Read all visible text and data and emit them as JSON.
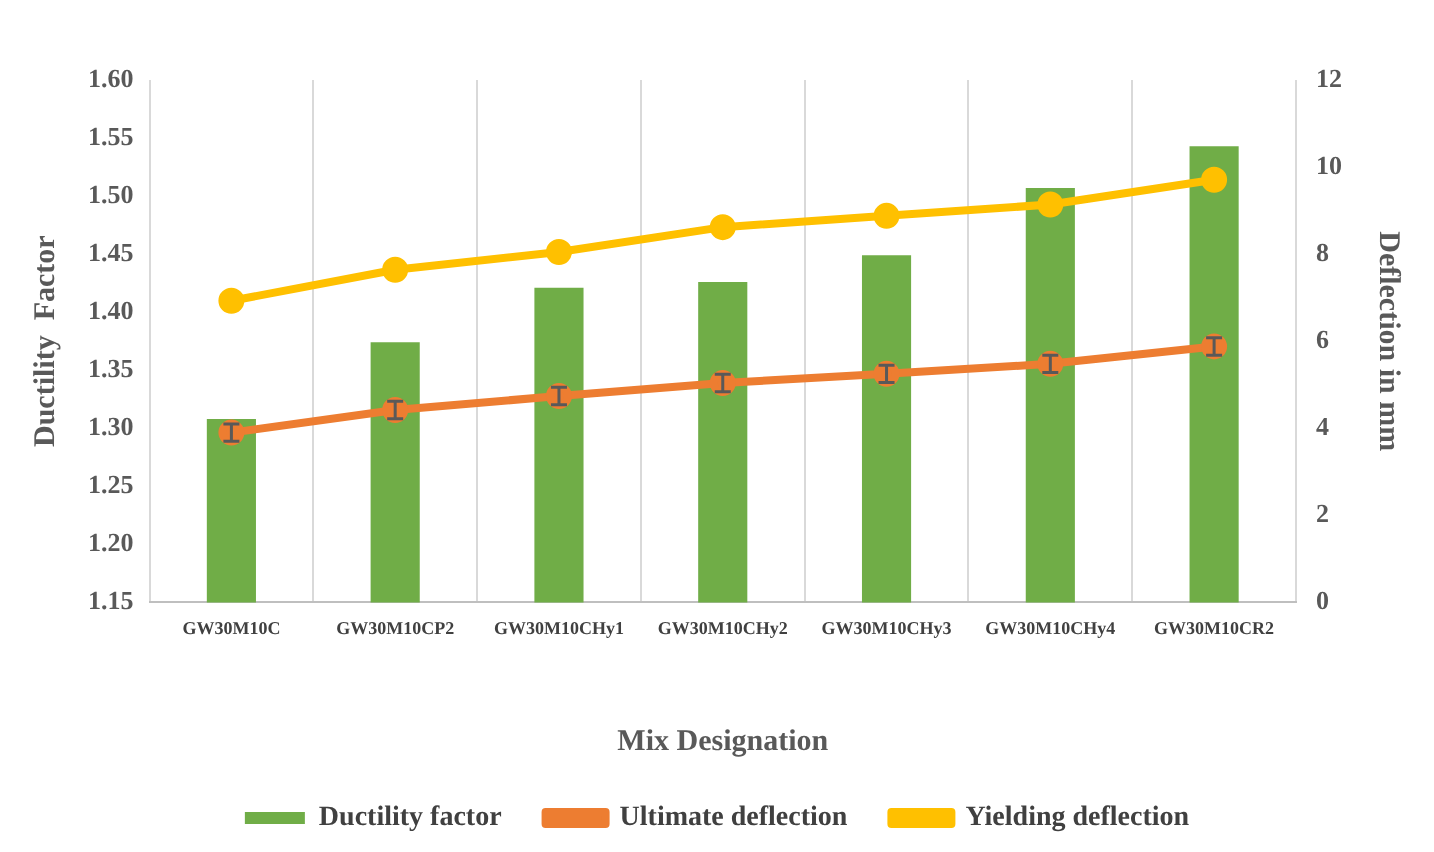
{
  "chart_data": {
    "type": "bar",
    "xlabel": "Mix Designation",
    "ylabel": "Ductility  Factor",
    "y2label": "Deflection in mm",
    "categories": [
      "GW30M10C",
      "GW30M10CP2",
      "GW30M10CHy1",
      "GW30M10CHy2",
      "GW30M10CHy3",
      "GW30M10CHy4",
      "GW30M10CR2"
    ],
    "series": [
      {
        "name": "Ductility factor",
        "color": "#70ad47",
        "values": [
          1.308,
          1.374,
          1.421,
          1.426,
          1.449,
          1.507,
          1.543
        ]
      },
      {
        "name": "Ultimate deflection",
        "type": "line",
        "axis": "y2",
        "color": "#ed7d31",
        "values": [
          3.9,
          4.42,
          4.74,
          5.04,
          5.25,
          5.48,
          5.88
        ],
        "errors": [
          0.2,
          0.2,
          0.2,
          0.2,
          0.2,
          0.2,
          0.2
        ]
      },
      {
        "name": "Yielding deflection",
        "type": "line",
        "axis": "y2",
        "color": "#ffc000",
        "values": [
          6.93,
          7.64,
          8.05,
          8.62,
          8.88,
          9.14,
          9.71
        ]
      }
    ],
    "ylim": [
      1.15,
      1.6
    ],
    "yticks": [
      {
        "value": 1.15,
        "label": "1.15"
      },
      {
        "value": 1.2,
        "label": "1.20"
      },
      {
        "value": 1.25,
        "label": "1.25"
      },
      {
        "value": 1.3,
        "label": "1.30"
      },
      {
        "value": 1.35,
        "label": "1.35"
      },
      {
        "value": 1.4,
        "label": "1.40"
      },
      {
        "value": 1.45,
        "label": "1.45"
      },
      {
        "value": 1.5,
        "label": "1.50"
      },
      {
        "value": 1.55,
        "label": "1.55"
      },
      {
        "value": 1.6,
        "label": "1.60"
      }
    ],
    "y2lim": [
      0,
      12
    ],
    "y2ticks": [
      0,
      2,
      4,
      6,
      8,
      10,
      12
    ],
    "grid": "x",
    "legend": "bottom",
    "marker": "circle"
  }
}
